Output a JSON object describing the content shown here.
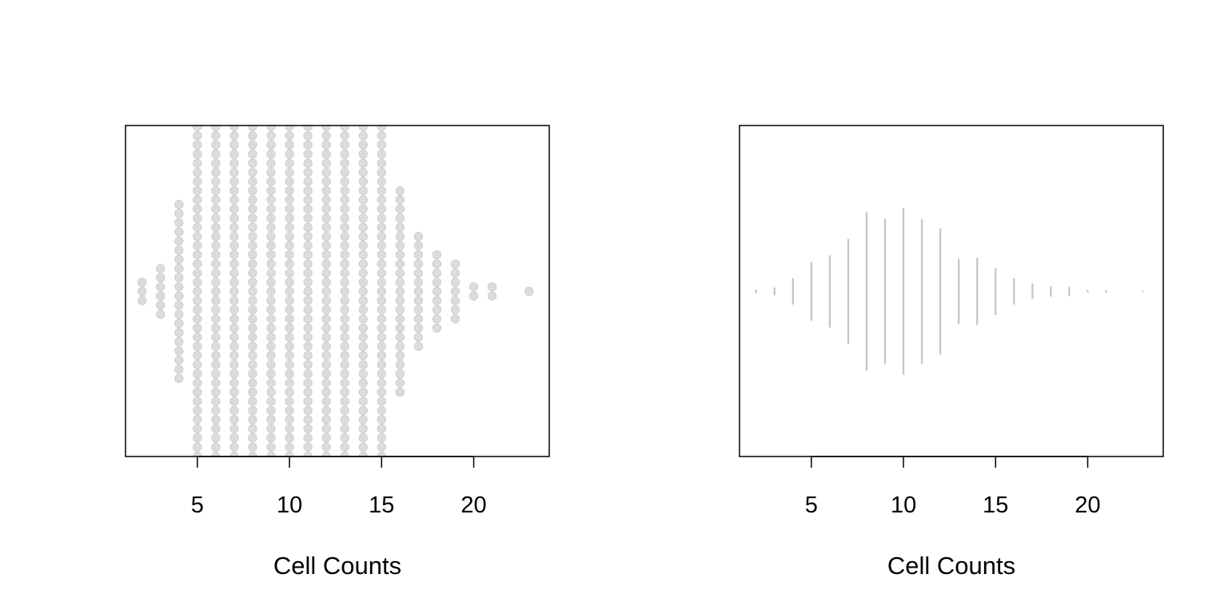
{
  "chart_data": [
    {
      "type": "scatter",
      "style": "beeswarm-stacked-dots",
      "title": "",
      "xlabel": "Cell Counts",
      "ylabel": "",
      "xlim": [
        1.1,
        24.1
      ],
      "xticks": [
        5,
        10,
        15,
        20
      ],
      "grid": false,
      "point_color": "#dcdcdc",
      "point_stroke": "#cfcfcf",
      "x": [
        2,
        3,
        4,
        5,
        6,
        7,
        8,
        9,
        10,
        11,
        12,
        13,
        14,
        15,
        16,
        17,
        18,
        19,
        20,
        21,
        23
      ],
      "counts": [
        3,
        6,
        20,
        45,
        45,
        45,
        45,
        45,
        45,
        45,
        45,
        45,
        45,
        45,
        23,
        13,
        9,
        7,
        2,
        2,
        1
      ]
    },
    {
      "type": "strip",
      "style": "centered-vertical-lines",
      "title": "",
      "xlabel": "Cell Counts",
      "ylabel": "",
      "xlim": [
        1.1,
        24.1
      ],
      "xticks": [
        5,
        10,
        15,
        20
      ],
      "grid": false,
      "line_color": "#c4c4c4",
      "x": [
        2,
        3,
        4,
        5,
        6,
        7,
        8,
        9,
        10,
        11,
        12,
        13,
        14,
        15,
        16,
        17,
        18,
        19,
        20,
        21,
        23
      ],
      "counts": [
        3,
        6,
        20,
        45,
        55,
        80,
        121,
        111,
        127,
        110,
        96,
        50,
        51,
        36,
        20,
        12,
        8,
        7,
        2,
        2,
        1
      ]
    }
  ]
}
